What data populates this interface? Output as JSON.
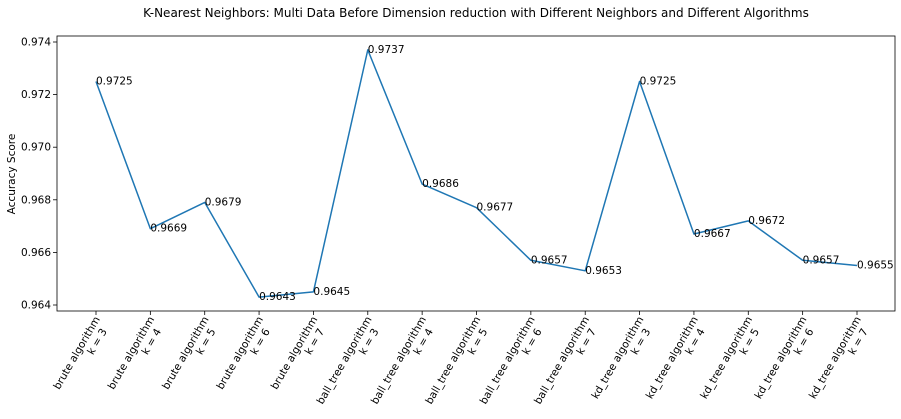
{
  "chart_data": {
    "type": "line",
    "title": "K-Nearest Neighbors: Multi Data Before Dimension reduction with Different Neighbors and Different Algorithms",
    "xlabel": "",
    "ylabel": "Accuracy Score",
    "ylim": [
      0.964,
      0.974
    ],
    "grid": false,
    "line_color": "#1f77b4",
    "categories": [
      [
        "brute algorithm",
        "k = 3"
      ],
      [
        "brute algorithm",
        "k = 4"
      ],
      [
        "brute algorithm",
        "k = 5"
      ],
      [
        "brute algorithm",
        "k = 6"
      ],
      [
        "brute algorithm",
        "k = 7"
      ],
      [
        "ball_tree algorithm",
        "k = 3"
      ],
      [
        "ball_tree algorithm",
        "k = 4"
      ],
      [
        "ball_tree algorithm",
        "k = 5"
      ],
      [
        "ball_tree algorithm",
        "k = 6"
      ],
      [
        "ball_tree algorithm",
        "k = 7"
      ],
      [
        "kd_tree algorithm",
        "k = 3"
      ],
      [
        "kd_tree algorithm",
        "k = 4"
      ],
      [
        "kd_tree algorithm",
        "k = 5"
      ],
      [
        "kd_tree algorithm",
        "k = 6"
      ],
      [
        "kd_tree algorithm",
        "k = 7"
      ]
    ],
    "values": [
      0.9725,
      0.9669,
      0.9679,
      0.9643,
      0.9645,
      0.9737,
      0.9686,
      0.9677,
      0.9657,
      0.9653,
      0.9725,
      0.9667,
      0.9672,
      0.9657,
      0.9655
    ],
    "data_labels": [
      "0.9725",
      "0.9669",
      "0.9679",
      "0.9643",
      "0.9645",
      "0.9737",
      "0.9686",
      "0.9677",
      "0.9657",
      "0.9653",
      "0.9725",
      "0.9667",
      "0.9672",
      "0.9657",
      "0.9655"
    ],
    "y_ticks": [
      0.964,
      0.966,
      0.968,
      0.97,
      0.972,
      0.974
    ],
    "y_tick_labels": [
      "0.964",
      "0.966",
      "0.968",
      "0.970",
      "0.972",
      "0.974"
    ]
  }
}
